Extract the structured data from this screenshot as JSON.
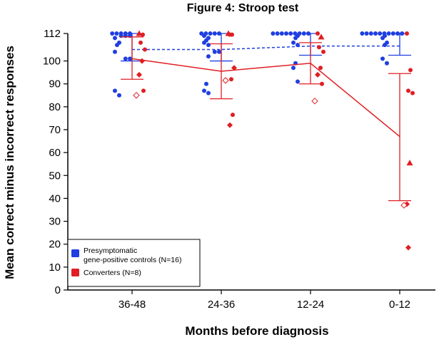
{
  "chart_data": {
    "type": "scatter",
    "title": "Figure 4: Stroop test",
    "xlabel": "Months before diagnosis",
    "ylabel": "Mean correct minus incorrect responses",
    "categories": [
      "36-48",
      "24-36",
      "12-24",
      "0-12"
    ],
    "yticks": [
      0,
      10,
      20,
      30,
      40,
      50,
      60,
      70,
      80,
      90,
      100,
      112
    ],
    "ylim": [
      0,
      112
    ],
    "legend_position": "bottom-left",
    "legend": {
      "controls_line1": "Presymptomatic",
      "controls_line2": "gene-positive controls (N=16)",
      "converters": "Converters (N=8)"
    },
    "colors": {
      "controls": "#1f3fe0",
      "converters": "#e01e24"
    },
    "series": [
      {
        "name": "Presymptomatic gene-positive controls (N=16)",
        "color": "#1f3fe0",
        "mean": [
          100,
          100,
          102.5,
          102.5
        ],
        "mean_line_style": "dashed",
        "mean_line_values": [
          105,
          105,
          106.5,
          106.5
        ],
        "error_low": [
          100,
          100,
          102.5,
          102.5
        ],
        "error_high": [
          112,
          112,
          112,
          112
        ],
        "points": [
          [
            112,
            112,
            112,
            112,
            112,
            111,
            111,
            111,
            110,
            108,
            107,
            104,
            101,
            101,
            87,
            85
          ],
          [
            112,
            112,
            112,
            112,
            112,
            111,
            110,
            109,
            108,
            107,
            104,
            104,
            102,
            90,
            87,
            86
          ],
          [
            112,
            112,
            112,
            112,
            112,
            112,
            112,
            112,
            112,
            111,
            110,
            108,
            107,
            99,
            97,
            91
          ],
          [
            112,
            112,
            112,
            112,
            112,
            112,
            112,
            112,
            112,
            112,
            111,
            110,
            108,
            107,
            101,
            99
          ]
        ]
      },
      {
        "name": "Converters (N=8)",
        "color": "#e01e24",
        "mean": [
          101,
          95.5,
          99,
          67
        ],
        "error_low": [
          92,
          83.5,
          90,
          39
        ],
        "error_high": [
          110.5,
          107.5,
          108,
          94.5
        ],
        "points": [
          [
            {
              "y": 112,
              "shape": "triangle"
            },
            {
              "y": 111.5,
              "shape": "circle"
            },
            {
              "y": 108,
              "shape": "circle"
            },
            {
              "y": 105,
              "shape": "circle"
            },
            {
              "y": 100,
              "shape": "diamond"
            },
            {
              "y": 94,
              "shape": "diamond"
            },
            {
              "y": 87,
              "shape": "circle"
            },
            {
              "y": 85,
              "shape": "open-diamond"
            }
          ],
          [
            {
              "y": 112,
              "shape": "triangle"
            },
            {
              "y": 111.5,
              "shape": "circle"
            },
            {
              "y": 111.5,
              "shape": "circle"
            },
            {
              "y": 97,
              "shape": "diamond"
            },
            {
              "y": 92,
              "shape": "circle"
            },
            {
              "y": 91.5,
              "shape": "open-diamond"
            },
            {
              "y": 76.5,
              "shape": "circle"
            },
            {
              "y": 72,
              "shape": "diamond"
            }
          ],
          [
            {
              "y": 112,
              "shape": "circle"
            },
            {
              "y": 110.5,
              "shape": "triangle"
            },
            {
              "y": 106,
              "shape": "circle"
            },
            {
              "y": 104,
              "shape": "circle"
            },
            {
              "y": 97,
              "shape": "circle"
            },
            {
              "y": 94,
              "shape": "diamond"
            },
            {
              "y": 90,
              "shape": "circle"
            },
            {
              "y": 82.5,
              "shape": "open-diamond"
            }
          ],
          [
            {
              "y": 112,
              "shape": "circle"
            },
            {
              "y": 96,
              "shape": "circle"
            },
            {
              "y": 87,
              "shape": "circle"
            },
            {
              "y": 86,
              "shape": "circle"
            },
            {
              "y": 55.5,
              "shape": "triangle"
            },
            {
              "y": 37.5,
              "shape": "diamond"
            },
            {
              "y": 37,
              "shape": "open-diamond"
            },
            {
              "y": 18.5,
              "shape": "diamond"
            }
          ]
        ]
      }
    ]
  }
}
